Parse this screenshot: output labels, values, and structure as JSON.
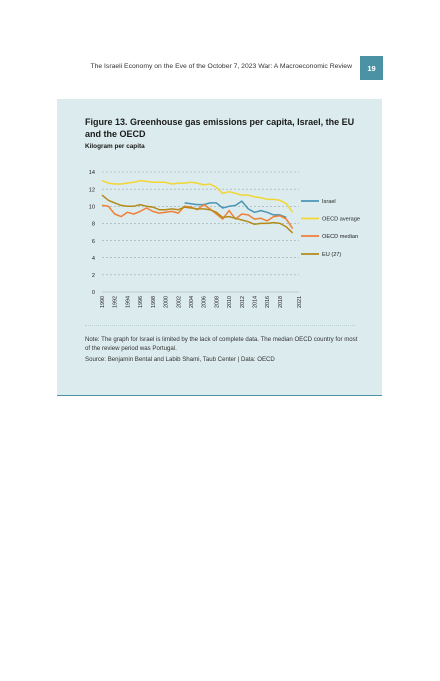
{
  "header": {
    "title": "The Israeli Economy on the Eve of the October 7, 2023 War: A Macroeconomic Review",
    "page_number": "19"
  },
  "figure": {
    "title": "Figure 13. Greenhouse gas emissions per capita, Israel, the EU and the OECD",
    "subtitle": "Kilogram per capita",
    "note": "Note: The graph for Israel is limited by the lack of complete data. The median OECD country for most of the review period was Portugal.",
    "source": "Source: Benjamin Bental and Labib Shami, Taub Center | Data: OECD"
  },
  "chart_data": {
    "type": "line",
    "title": "Figure 13. Greenhouse gas emissions per capita, Israel, the EU and the OECD",
    "ylabel": "Kilogram per capita",
    "xlabel": "",
    "ylim": [
      0,
      14
    ],
    "yticks": [
      0,
      2,
      4,
      6,
      8,
      10,
      12,
      14
    ],
    "xticks": [
      1990,
      1992,
      1994,
      1996,
      1998,
      2000,
      2002,
      2004,
      2006,
      2008,
      2010,
      2012,
      2014,
      2016,
      2018,
      2021
    ],
    "grid": "horizontal dashed",
    "legend_position": "right",
    "x": [
      1990,
      1991,
      1992,
      1993,
      1994,
      1995,
      1996,
      1997,
      1998,
      1999,
      2000,
      2001,
      2002,
      2003,
      2004,
      2005,
      2006,
      2007,
      2008,
      2009,
      2010,
      2011,
      2012,
      2013,
      2014,
      2015,
      2016,
      2017,
      2018,
      2019,
      2020
    ],
    "series": [
      {
        "name": "Israel",
        "color": "#4a96b5",
        "x": [
          2003,
          2004,
          2005,
          2006,
          2007,
          2008,
          2009,
          2010,
          2011,
          2012,
          2013,
          2014,
          2015,
          2016,
          2017,
          2018,
          2019
        ],
        "values": [
          10.4,
          10.3,
          10.2,
          10.2,
          10.4,
          10.4,
          9.8,
          10.0,
          10.1,
          10.6,
          9.7,
          9.3,
          9.5,
          9.3,
          9.0,
          9.0,
          8.7
        ]
      },
      {
        "name": "OECD average",
        "color": "#f2d634",
        "x": [
          1990,
          1991,
          1992,
          1993,
          1994,
          1995,
          1996,
          1997,
          1998,
          1999,
          2000,
          2001,
          2002,
          2003,
          2004,
          2005,
          2006,
          2007,
          2008,
          2009,
          2010,
          2011,
          2012,
          2013,
          2014,
          2015,
          2016,
          2017,
          2018,
          2019,
          2020
        ],
        "values": [
          13.0,
          12.7,
          12.6,
          12.6,
          12.7,
          12.8,
          13.0,
          12.9,
          12.8,
          12.8,
          12.8,
          12.6,
          12.7,
          12.7,
          12.8,
          12.7,
          12.5,
          12.6,
          12.2,
          11.5,
          11.7,
          11.5,
          11.3,
          11.3,
          11.1,
          11.0,
          10.8,
          10.8,
          10.7,
          10.3,
          9.3
        ]
      },
      {
        "name": "OECD median",
        "color": "#f07f37",
        "x": [
          1990,
          1991,
          1992,
          1993,
          1994,
          1995,
          1996,
          1997,
          1998,
          1999,
          2000,
          2001,
          2002,
          2003,
          2004,
          2005,
          2006,
          2007,
          2008,
          2009,
          2010,
          2011,
          2012,
          2013,
          2014,
          2015,
          2016,
          2017,
          2018,
          2019,
          2020
        ],
        "values": [
          10.1,
          10.0,
          9.1,
          8.8,
          9.3,
          9.1,
          9.4,
          9.8,
          9.4,
          9.2,
          9.3,
          9.4,
          9.2,
          10.0,
          9.9,
          9.6,
          10.2,
          9.7,
          9.1,
          8.5,
          9.5,
          8.5,
          9.1,
          9.0,
          8.5,
          8.6,
          8.3,
          8.8,
          8.9,
          8.5,
          7.4
        ]
      },
      {
        "name": "EU (27)",
        "color": "#b38b1a",
        "x": [
          1990,
          1991,
          1992,
          1993,
          1994,
          1995,
          1996,
          1997,
          1998,
          1999,
          2000,
          2001,
          2002,
          2003,
          2004,
          2005,
          2006,
          2007,
          2008,
          2009,
          2010,
          2011,
          2012,
          2013,
          2014,
          2015,
          2016,
          2017,
          2018,
          2019,
          2020
        ],
        "values": [
          11.3,
          10.7,
          10.4,
          10.1,
          10.0,
          10.0,
          10.2,
          10.0,
          9.9,
          9.6,
          9.6,
          9.7,
          9.6,
          9.9,
          9.8,
          9.7,
          9.7,
          9.6,
          9.3,
          8.7,
          8.8,
          8.6,
          8.4,
          8.2,
          7.9,
          8.0,
          8.0,
          8.1,
          8.0,
          7.6,
          6.9
        ]
      }
    ]
  }
}
